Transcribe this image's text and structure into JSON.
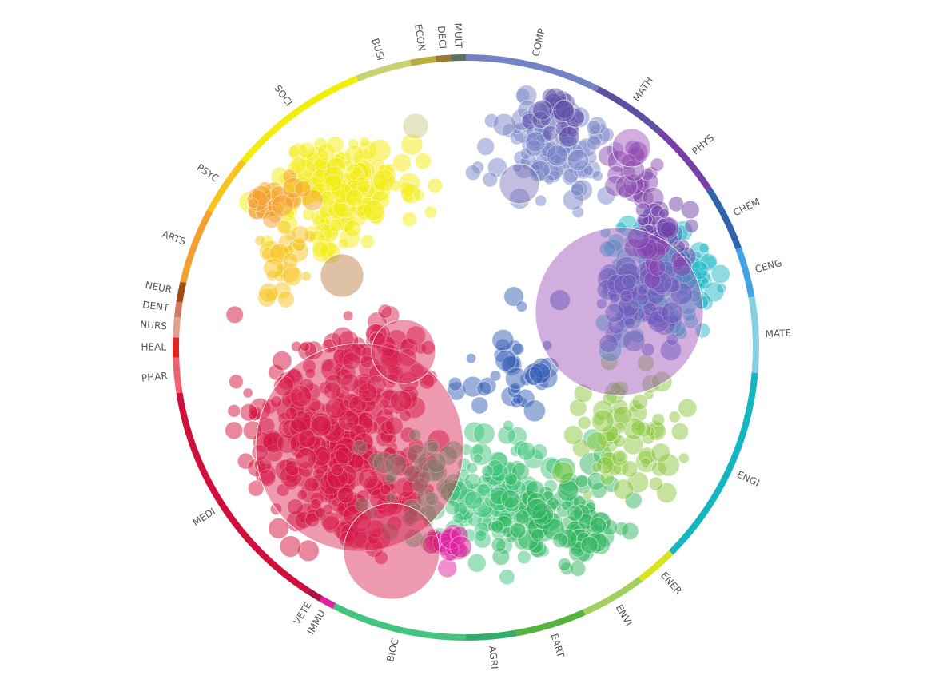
{
  "ring": {
    "segments": [
      {
        "label": "COMP",
        "color": "#7282c2"
      },
      {
        "label": "MATH",
        "color": "#5e4fa0"
      },
      {
        "label": "PHYS",
        "color": "#7a3fa6"
      },
      {
        "label": "CHEM",
        "color": "#2f63ad"
      },
      {
        "label": "CENG",
        "color": "#42a3e2"
      },
      {
        "label": "MATE",
        "color": "#86d0e2"
      },
      {
        "label": "ENGI",
        "color": "#14b6c2"
      },
      {
        "label": "ENER",
        "color": "#d8e41e"
      },
      {
        "label": "ENVI",
        "color": "#a2d05e"
      },
      {
        "label": "EART",
        "color": "#55b23c"
      },
      {
        "label": "AGRI",
        "color": "#2fae6e"
      },
      {
        "label": "BIOC",
        "color": "#44c47e"
      },
      {
        "label": "IMMU",
        "color": "#e020a0"
      },
      {
        "label": "VETE",
        "color": "#a81444"
      },
      {
        "label": "MEDI",
        "color": "#d0103c"
      },
      {
        "label": "PHAR",
        "color": "#f06272"
      },
      {
        "label": "HEAL",
        "color": "#e42424"
      },
      {
        "label": "NURS",
        "color": "#e2a090"
      },
      {
        "label": "DENT",
        "color": "#d07868"
      },
      {
        "label": "NEUR",
        "color": "#a04c12"
      },
      {
        "label": "ARTS",
        "color": "#f2a030"
      },
      {
        "label": "PSYC",
        "color": "#f8c41e"
      },
      {
        "label": "SOCI",
        "color": "#f2ee08"
      },
      {
        "label": "BUSI",
        "color": "#c8d272"
      },
      {
        "label": "ECON",
        "color": "#b8ae40"
      },
      {
        "label": "DECI",
        "color": "#9a7a30"
      },
      {
        "label": "MULT",
        "color": "#60705e"
      }
    ]
  }
}
